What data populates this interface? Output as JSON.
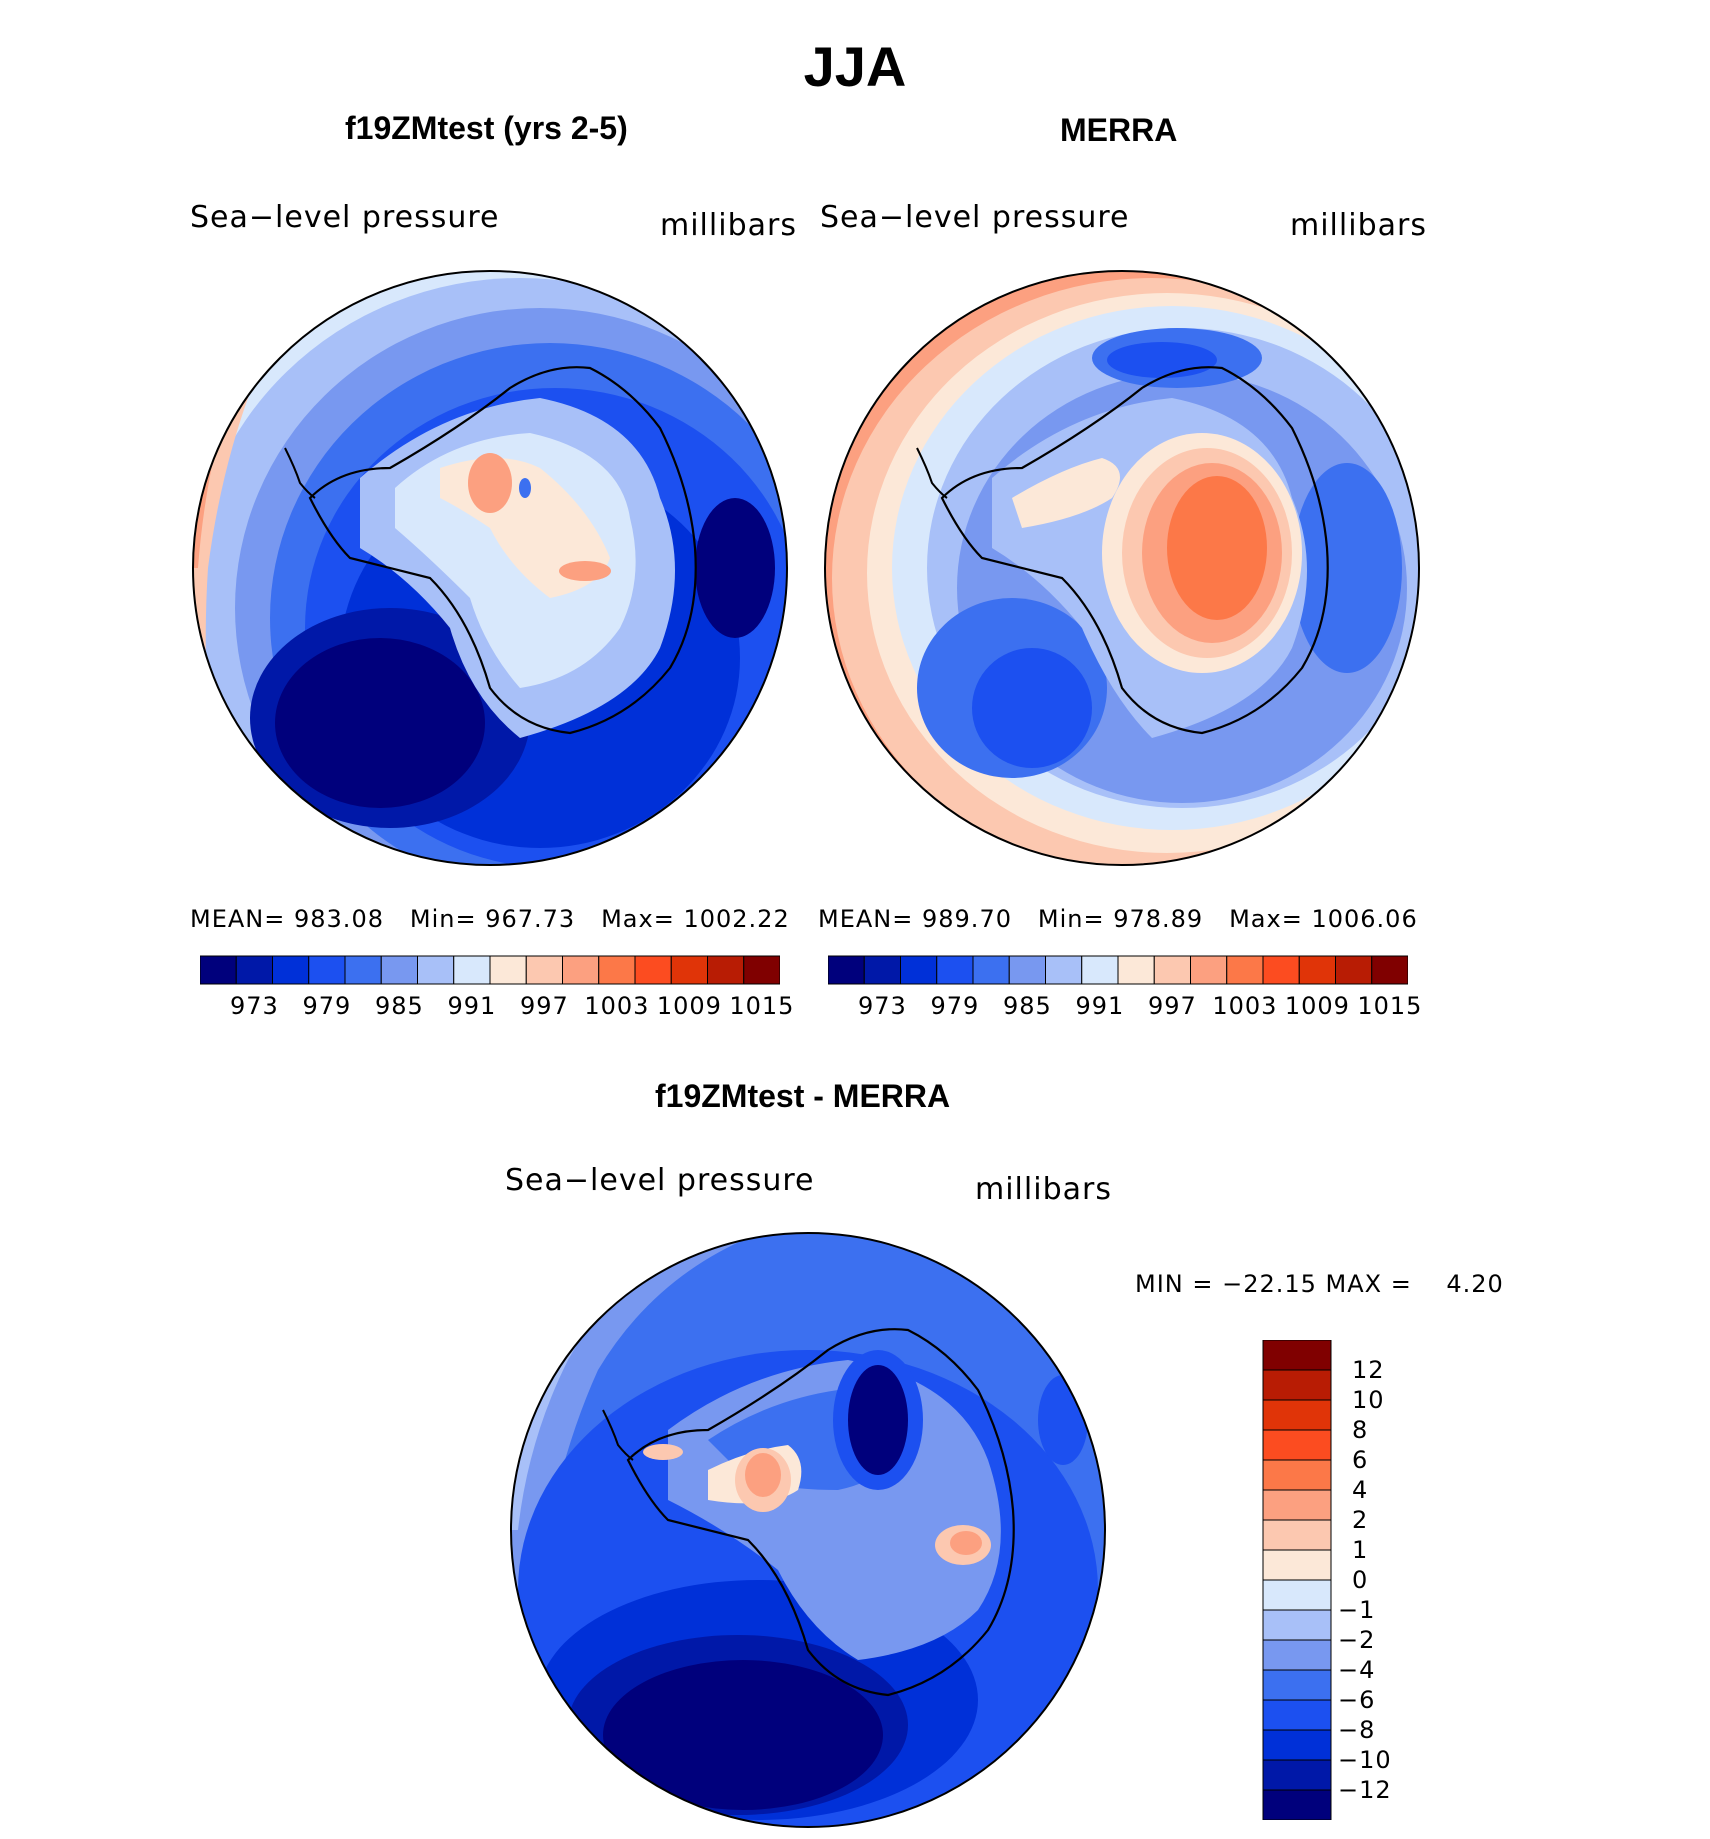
{
  "figure": {
    "title": "JJA"
  },
  "panels": [
    {
      "id": "model",
      "title": "f19ZMtest (yrs 2-5)",
      "variable": "Sea−level pressure",
      "units": "millibars",
      "stats": {
        "mean_label": "MEAN=",
        "mean": "983.08",
        "min_label": "Min=",
        "min": "967.73",
        "max_label": "Max=",
        "max": "1002.22"
      }
    },
    {
      "id": "obs",
      "title": "MERRA",
      "variable": "Sea−level pressure",
      "units": "millibars",
      "stats": {
        "mean_label": "MEAN=",
        "mean": "989.70",
        "min_label": "Min=",
        "min": "978.89",
        "max_label": "Max=",
        "max": "1006.06"
      }
    },
    {
      "id": "diff",
      "title": "f19ZMtest - MERRA",
      "variable": "Sea−level pressure",
      "units": "millibars",
      "stats_text": "MIN = −22.15 MAX =    4.20"
    }
  ],
  "colorbar_abs": {
    "colors": [
      "#00007c",
      "#0018a8",
      "#0030d8",
      "#1c50f0",
      "#3c70f0",
      "#7898f0",
      "#a8c0f8",
      "#d8e8fc",
      "#fce8d8",
      "#fcc8b0",
      "#fca080",
      "#fc7848",
      "#fc4c20",
      "#e03408",
      "#b81c04",
      "#800000"
    ],
    "ticks": [
      "973",
      "979",
      "985",
      "991",
      "997",
      "1003",
      "1009",
      "1015"
    ]
  },
  "colorbar_diff": {
    "colors": [
      "#800000",
      "#b81c04",
      "#e03408",
      "#fc4c20",
      "#fc7848",
      "#fca080",
      "#fcc8b0",
      "#fce8d8",
      "#d8e8fc",
      "#a8c0f8",
      "#7898f0",
      "#3c70f0",
      "#1c50f0",
      "#0030d8",
      "#0018a8",
      "#00007c"
    ],
    "ticks": [
      "12",
      "10",
      "8",
      "6",
      "4",
      "2",
      "1",
      "0",
      "−1",
      "−2",
      "−4",
      "−6",
      "−8",
      "−10",
      "−12"
    ]
  },
  "chart_data": [
    {
      "type": "heatmap",
      "title": "f19ZMtest (yrs 2-5)",
      "projection": "south polar stereographic",
      "variable": "Sea-level pressure",
      "units": "millibars",
      "mean": 983.08,
      "min": 967.73,
      "max": 1002.22,
      "contour_levels": [
        967,
        970,
        973,
        976,
        979,
        982,
        985,
        988,
        991,
        994,
        997,
        1000,
        1003,
        1006,
        1009,
        1012,
        1015
      ]
    },
    {
      "type": "heatmap",
      "title": "MERRA",
      "projection": "south polar stereographic",
      "variable": "Sea-level pressure",
      "units": "millibars",
      "mean": 989.7,
      "min": 978.89,
      "max": 1006.06,
      "contour_levels": [
        967,
        970,
        973,
        976,
        979,
        982,
        985,
        988,
        991,
        994,
        997,
        1000,
        1003,
        1006,
        1009,
        1012,
        1015
      ]
    },
    {
      "type": "heatmap",
      "title": "f19ZMtest - MERRA",
      "projection": "south polar stereographic",
      "variable": "Sea-level pressure",
      "units": "millibars",
      "min": -22.15,
      "max": 4.2,
      "contour_levels": [
        -12,
        -10,
        -8,
        -6,
        -4,
        -2,
        -1,
        0,
        1,
        2,
        4,
        6,
        8,
        10,
        12
      ]
    }
  ]
}
